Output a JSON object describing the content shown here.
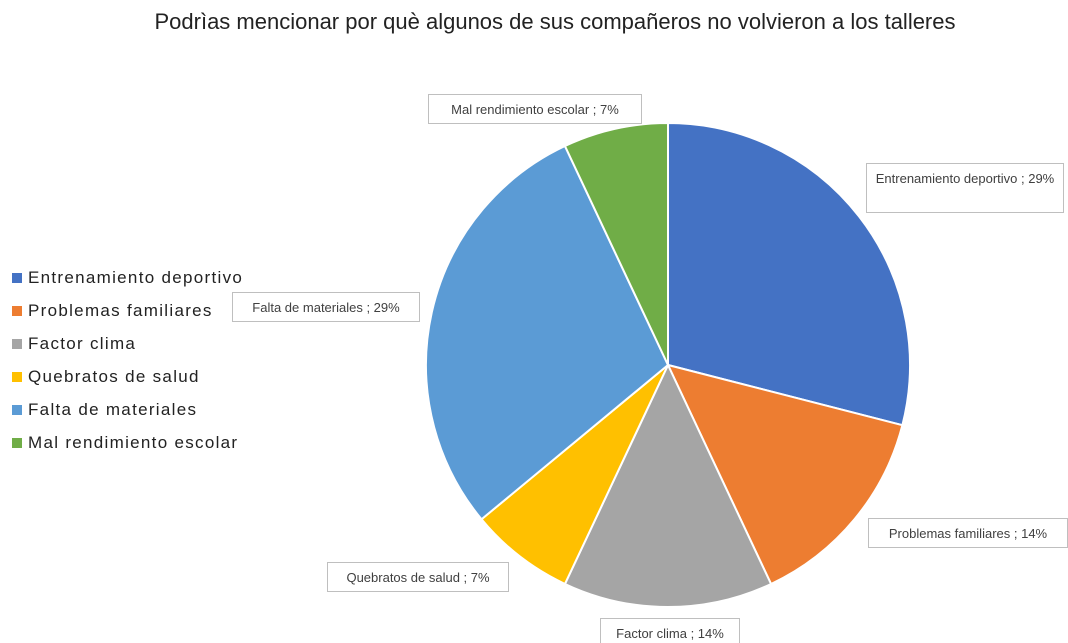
{
  "chart_data": {
    "type": "pie",
    "title": "Podrìas mencionar por què algunos de sus compañeros no volvieron a los talleres",
    "categories": [
      "Entrenamiento deportivo",
      "Problemas familiares",
      "Factor clima",
      "Quebratos de salud",
      "Falta de materiales",
      "Mal rendimiento escolar"
    ],
    "values": [
      29,
      14,
      14,
      7,
      29,
      7
    ],
    "value_labels": [
      "Entrenamiento deportivo ; 29%",
      "Problemas familiares ; 14%",
      "Factor clima ; 14%",
      "Quebratos de salud ; 7%",
      "Falta de materiales ; 29%",
      "Mal rendimiento escolar ; 7%"
    ],
    "colors": [
      "#4472c4",
      "#ed7d31",
      "#a5a5a5",
      "#ffc000",
      "#5b9bd5",
      "#70ad47"
    ],
    "legend": "left"
  }
}
